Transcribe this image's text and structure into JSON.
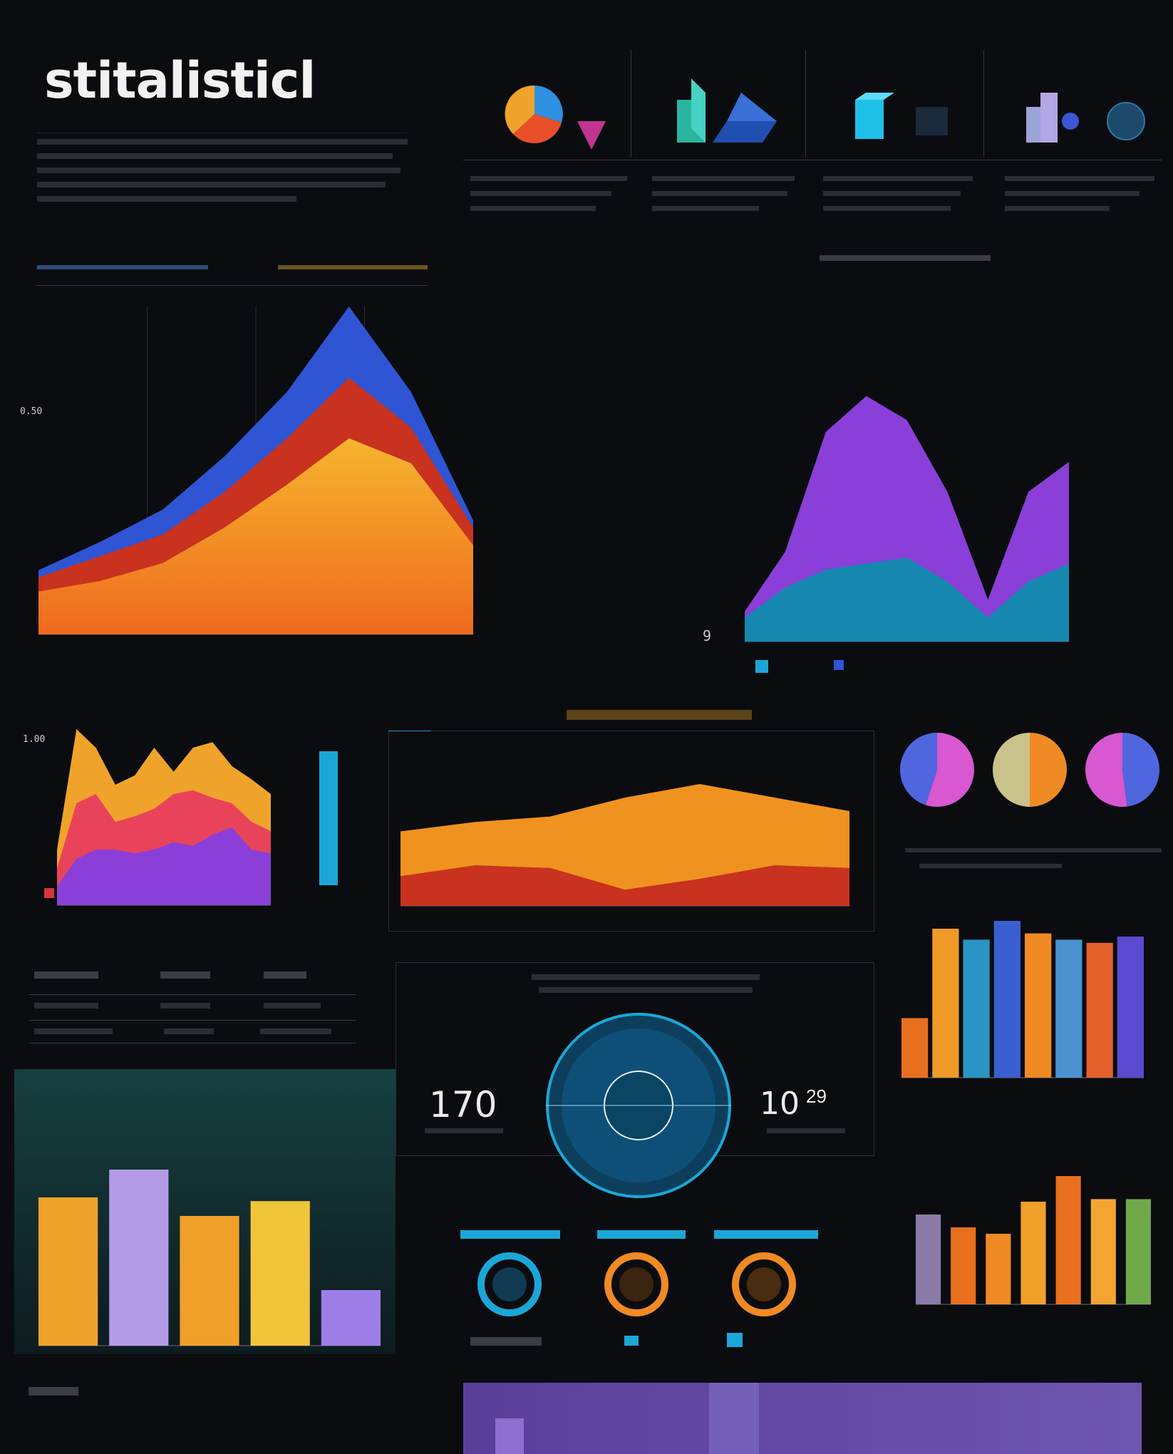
{
  "header": {
    "title": "stitalisticl"
  },
  "colors": {
    "background": "#0b0c0f",
    "orange": "#f08a24",
    "yellow": "#f2b632",
    "red": "#c8321f",
    "blue": "#2f55d4",
    "purple": "#8a3fd8",
    "cyan": "#1aa7d8",
    "teal": "#1f5d5a"
  },
  "icons": [
    "pie-icon",
    "cube-icon",
    "donut-icon",
    "globe-icon"
  ],
  "stats": {
    "left_value": "170",
    "right_value": "10",
    "right_sup": "29"
  },
  "chart_data": [
    {
      "type": "area",
      "ylabels": [
        "0.50"
      ],
      "x": [
        0,
        1,
        2,
        3,
        4,
        5,
        6,
        7
      ],
      "series": [
        {
          "values": [
            12,
            15,
            20,
            30,
            42,
            55,
            48,
            25
          ]
        },
        {
          "values": [
            16,
            22,
            28,
            40,
            55,
            72,
            58,
            30
          ]
        },
        {
          "values": [
            18,
            26,
            35,
            50,
            68,
            92,
            68,
            32
          ]
        }
      ],
      "ylim": [
        0,
        100
      ]
    },
    {
      "type": "area",
      "ylabels": [
        "9"
      ],
      "x": [
        0,
        1,
        2,
        3,
        4,
        5,
        6,
        7,
        8
      ],
      "series": [
        {
          "values": [
            8,
            18,
            24,
            26,
            28,
            20,
            8,
            20,
            26
          ]
        },
        {
          "values": [
            10,
            30,
            70,
            82,
            74,
            50,
            14,
            50,
            60
          ]
        }
      ],
      "ylim": [
        0,
        100
      ]
    },
    {
      "type": "area",
      "ylabels": [
        "1.00"
      ],
      "x": [
        0,
        1,
        2,
        3,
        4,
        5,
        6,
        7,
        8,
        9,
        10,
        11
      ],
      "series": [
        {
          "values": [
            10,
            25,
            30,
            30,
            28,
            30,
            34,
            32,
            38,
            42,
            30,
            28
          ]
        },
        {
          "values": [
            20,
            55,
            60,
            45,
            48,
            52,
            60,
            62,
            58,
            55,
            45,
            40
          ]
        },
        {
          "values": [
            30,
            95,
            85,
            65,
            70,
            85,
            72,
            85,
            88,
            75,
            68,
            60
          ]
        }
      ],
      "ylim": [
        0,
        100
      ]
    },
    {
      "type": "area",
      "x": [
        0,
        1,
        2,
        3,
        4,
        5,
        6
      ],
      "series": [
        {
          "values": [
            22,
            30,
            28,
            12,
            20,
            30,
            28
          ]
        },
        {
          "values": [
            55,
            62,
            66,
            80,
            90,
            80,
            70
          ]
        }
      ],
      "ylim": [
        0,
        100
      ]
    },
    {
      "type": "pie",
      "series": [
        {
          "values": [
            55,
            45
          ]
        },
        {
          "values": [
            50,
            50
          ]
        },
        {
          "values": [
            48,
            52
          ]
        }
      ]
    },
    {
      "type": "bar",
      "values": [
        38,
        95,
        88,
        100,
        92,
        88,
        86,
        90
      ],
      "ylim": [
        0,
        100
      ]
    },
    {
      "type": "bar",
      "values": [
        80,
        95,
        70,
        78,
        30
      ],
      "ylim": [
        0,
        100
      ]
    },
    {
      "type": "bar",
      "values": [
        70,
        60,
        55,
        80,
        100,
        82,
        82
      ],
      "ylim": [
        0,
        100
      ]
    }
  ]
}
